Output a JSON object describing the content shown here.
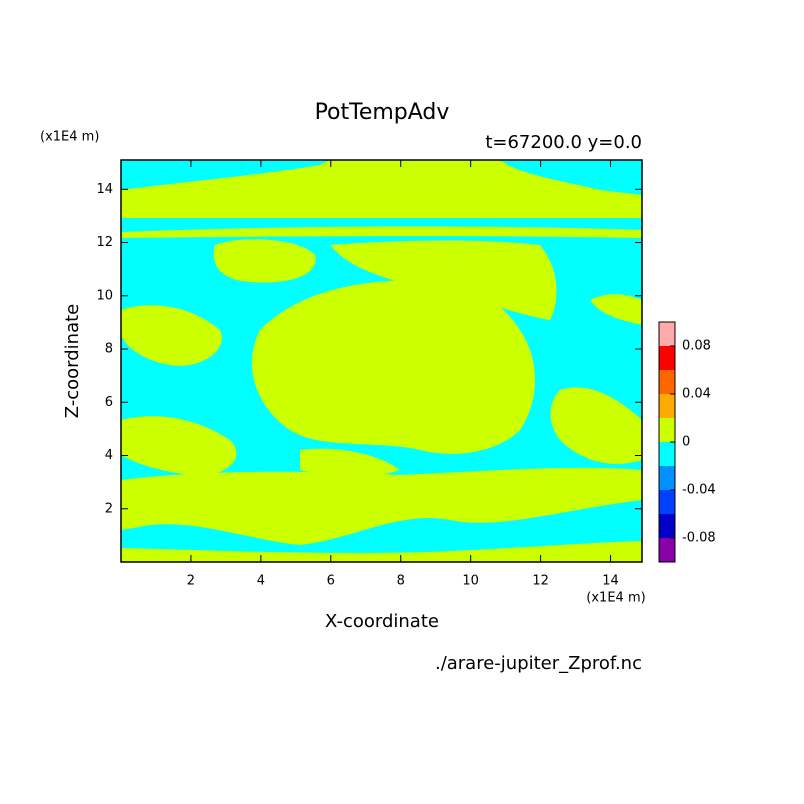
{
  "chart_data": {
    "type": "contour",
    "title": "PotTempAdv",
    "subtitle": "t=67200.0 y=0.0",
    "x_label": "X-coordinate",
    "y_label": "Z-coordinate",
    "x_unit": "(x1E4 m)",
    "y_unit": "(x1E4 m)",
    "source": "./arare-jupiter_Zprof.nc",
    "xlim": [
      0,
      14.9
    ],
    "ylim": [
      0,
      15.1
    ],
    "xticks": [
      2,
      4,
      6,
      8,
      10,
      12,
      14
    ],
    "yticks": [
      2,
      4,
      6,
      8,
      10,
      12,
      14
    ],
    "colorbar": {
      "levels": [
        -0.1,
        -0.08,
        -0.06,
        -0.04,
        -0.02,
        0,
        0.02,
        0.04,
        0.06,
        0.08,
        0.1
      ],
      "colors": [
        "#8a00a8",
        "#0000c8",
        "#0040ff",
        "#0090ff",
        "#00ffff",
        "#ccff00",
        "#ffaa00",
        "#ff6600",
        "#ff0000",
        "#ffaaaa"
      ],
      "ticks": [
        0.08,
        0.04,
        0,
        -0.04,
        -0.08
      ]
    }
  }
}
